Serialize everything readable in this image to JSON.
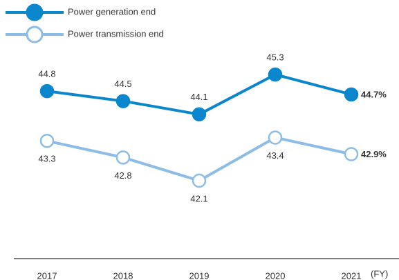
{
  "chart_data": {
    "type": "line",
    "categories": [
      "2017",
      "2018",
      "2019",
      "2020",
      "2021"
    ],
    "x_label": "(FY)",
    "series": [
      {
        "name": "Power generation end",
        "color": "#0a86cc",
        "values": [
          44.8,
          44.5,
          44.1,
          45.3,
          44.7
        ],
        "value_labels": [
          "44.8",
          "44.5",
          "44.1",
          "45.3",
          "44.7%"
        ]
      },
      {
        "name": "Power transmission end",
        "color": "#8dbde6",
        "values": [
          43.3,
          42.8,
          42.1,
          43.4,
          42.9
        ],
        "value_labels": [
          "43.3",
          "42.8",
          "42.1",
          "43.4",
          "42.9%"
        ]
      }
    ],
    "ylim": [
      39.75,
      46.3
    ],
    "legend": "top-left"
  }
}
